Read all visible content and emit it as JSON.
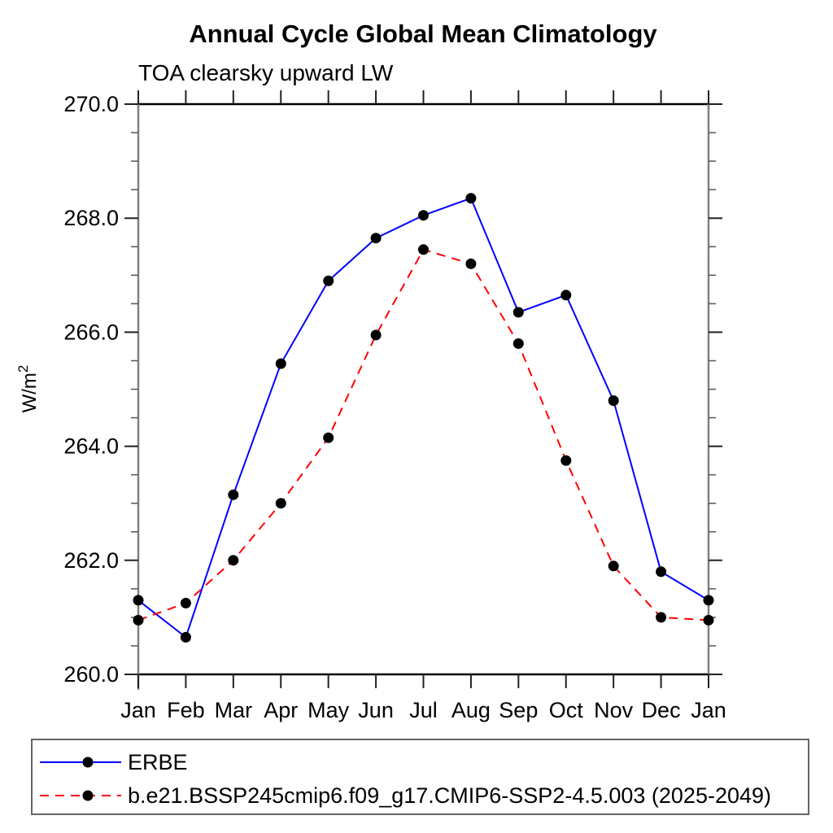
{
  "chart_data": {
    "type": "line",
    "title": "Annual Cycle Global Mean Climatology",
    "subtitle": "TOA clearsky upward LW",
    "ylabel": {
      "prefix": "W/m",
      "superscript": "2"
    },
    "categories": [
      "Jan",
      "Feb",
      "Mar",
      "Apr",
      "May",
      "Jun",
      "Jul",
      "Aug",
      "Sep",
      "Oct",
      "Nov",
      "Dec",
      "Jan"
    ],
    "ylim": [
      260.0,
      270.0
    ],
    "ytick_major": [
      260.0,
      262.0,
      264.0,
      266.0,
      268.0,
      270.0
    ],
    "ytick_labels": [
      "260.0",
      "262.0",
      "264.0",
      "266.0",
      "268.0",
      "270.0"
    ],
    "ytick_minor_step": 0.5,
    "grid": false,
    "legend_position": "bottom-left-box",
    "series": [
      {
        "name": "ERBE",
        "color": "#0000ff",
        "line_style": "solid",
        "marker": "filled-circle",
        "marker_color": "#000000",
        "values": [
          261.3,
          260.65,
          263.15,
          265.45,
          266.9,
          267.65,
          268.05,
          268.35,
          266.35,
          266.65,
          264.8,
          261.8,
          261.3
        ]
      },
      {
        "name": "b.e21.BSSP245cmip6.f09_g17.CMIP6-SSP2-4.5.003 (2025-2049)",
        "color": "#ff0000",
        "line_style": "dashed",
        "marker": "filled-circle",
        "marker_color": "#000000",
        "values": [
          260.95,
          261.25,
          262.0,
          263.0,
          264.15,
          265.95,
          267.45,
          267.2,
          265.8,
          263.75,
          261.9,
          261.0,
          260.95
        ]
      }
    ]
  }
}
